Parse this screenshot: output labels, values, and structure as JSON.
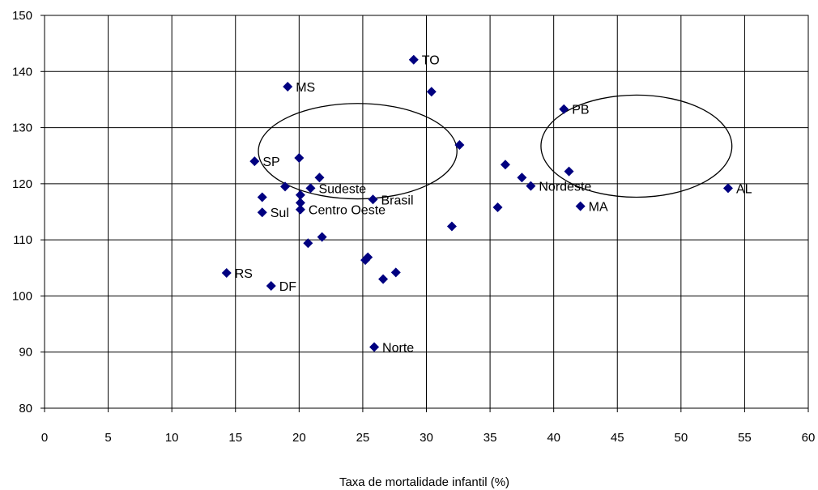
{
  "chart_data": {
    "type": "scatter",
    "title": "",
    "xlabel": "Taxa de mortalidade infantil (%)",
    "ylabel": "",
    "xlim": [
      0,
      60
    ],
    "ylim": [
      80,
      150
    ],
    "x_ticks": [
      "0",
      "5",
      "10",
      "15",
      "20",
      "25",
      "30",
      "35",
      "40",
      "45",
      "50",
      "55",
      "60"
    ],
    "y_ticks": [
      "80",
      "90",
      "100",
      "110",
      "120",
      "130",
      "140",
      "150"
    ],
    "grid": true,
    "marker": "diamond",
    "marker_color": "#000080",
    "points": [
      {
        "x": 29.0,
        "y": 142.1,
        "label": "TO"
      },
      {
        "x": 19.1,
        "y": 137.3,
        "label": "MS"
      },
      {
        "x": 30.4,
        "y": 136.4,
        "label": ""
      },
      {
        "x": 40.8,
        "y": 133.3,
        "label": "PB"
      },
      {
        "x": 32.6,
        "y": 126.9,
        "label": ""
      },
      {
        "x": 20.0,
        "y": 124.6,
        "label": ""
      },
      {
        "x": 16.5,
        "y": 124.0,
        "label": "SP"
      },
      {
        "x": 36.2,
        "y": 123.4,
        "label": ""
      },
      {
        "x": 41.2,
        "y": 122.2,
        "label": ""
      },
      {
        "x": 21.6,
        "y": 121.1,
        "label": ""
      },
      {
        "x": 37.5,
        "y": 121.1,
        "label": ""
      },
      {
        "x": 38.2,
        "y": 119.6,
        "label": "Nordeste"
      },
      {
        "x": 18.9,
        "y": 119.5,
        "label": ""
      },
      {
        "x": 20.9,
        "y": 119.2,
        "label": "Sudeste"
      },
      {
        "x": 53.7,
        "y": 119.2,
        "label": "AL"
      },
      {
        "x": 20.1,
        "y": 118.0,
        "label": ""
      },
      {
        "x": 17.1,
        "y": 117.6,
        "label": ""
      },
      {
        "x": 25.8,
        "y": 117.2,
        "label": "Brasil"
      },
      {
        "x": 20.1,
        "y": 116.6,
        "label": ""
      },
      {
        "x": 42.1,
        "y": 116.0,
        "label": "MA"
      },
      {
        "x": 35.6,
        "y": 115.8,
        "label": ""
      },
      {
        "x": 20.1,
        "y": 115.4,
        "label": "Centro Oeste"
      },
      {
        "x": 17.1,
        "y": 114.9,
        "label": "Sul"
      },
      {
        "x": 32.0,
        "y": 112.4,
        "label": ""
      },
      {
        "x": 21.8,
        "y": 110.5,
        "label": ""
      },
      {
        "x": 20.7,
        "y": 109.4,
        "label": ""
      },
      {
        "x": 25.4,
        "y": 106.9,
        "label": ""
      },
      {
        "x": 25.2,
        "y": 106.4,
        "label": ""
      },
      {
        "x": 27.6,
        "y": 104.2,
        "label": ""
      },
      {
        "x": 14.3,
        "y": 104.1,
        "label": "RS"
      },
      {
        "x": 26.6,
        "y": 103.0,
        "label": ""
      },
      {
        "x": 17.8,
        "y": 101.8,
        "label": "DF"
      },
      {
        "x": 25.9,
        "y": 90.9,
        "label": "Norte"
      }
    ],
    "annotations": [
      {
        "shape": "ellipse",
        "cx": 24.6,
        "cy": 125.8,
        "rx": 7.8,
        "ry": 8.5
      },
      {
        "shape": "ellipse",
        "cx": 46.5,
        "cy": 126.7,
        "rx": 7.5,
        "ry": 9.1
      }
    ]
  }
}
